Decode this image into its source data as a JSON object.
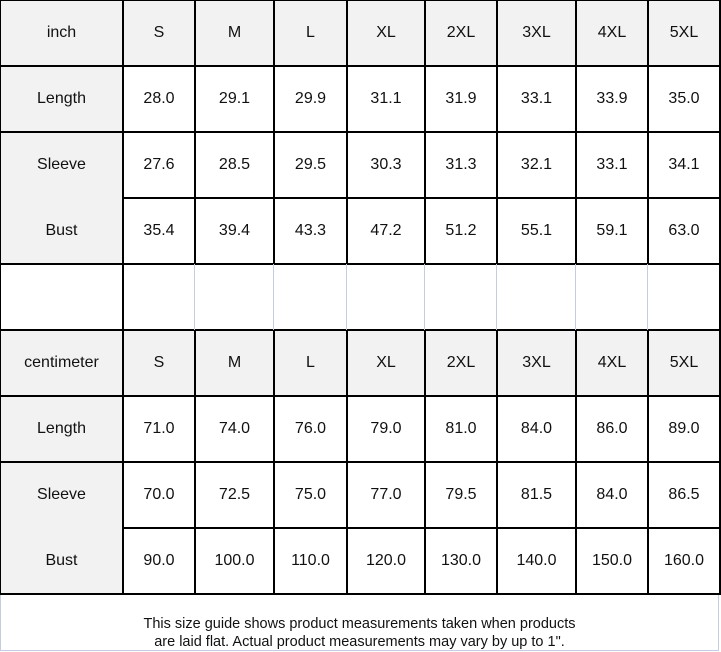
{
  "tables": [
    {
      "unit": "inch",
      "sizes": [
        "S",
        "M",
        "L",
        "XL",
        "2XL",
        "3XL",
        "4XL",
        "5XL"
      ],
      "rows": [
        {
          "label": "Length",
          "values": [
            "28.0",
            "29.1",
            "29.9",
            "31.1",
            "31.9",
            "33.1",
            "33.9",
            "35.0"
          ]
        },
        {
          "label": "Sleeve",
          "values": [
            "27.6",
            "28.5",
            "29.5",
            "30.3",
            "31.3",
            "32.1",
            "33.1",
            "34.1"
          ]
        },
        {
          "label": "Bust",
          "values": [
            "35.4",
            "39.4",
            "43.3",
            "47.2",
            "51.2",
            "55.1",
            "59.1",
            "63.0"
          ]
        }
      ]
    },
    {
      "unit": "centimeter",
      "sizes": [
        "S",
        "M",
        "L",
        "XL",
        "2XL",
        "3XL",
        "4XL",
        "5XL"
      ],
      "rows": [
        {
          "label": "Length",
          "values": [
            "71.0",
            "74.0",
            "76.0",
            "79.0",
            "81.0",
            "84.0",
            "86.0",
            "89.0"
          ]
        },
        {
          "label": "Sleeve",
          "values": [
            "70.0",
            "72.5",
            "75.0",
            "77.0",
            "79.5",
            "81.5",
            "84.0",
            "86.5"
          ]
        },
        {
          "label": "Bust",
          "values": [
            "90.0",
            "100.0",
            "110.0",
            "120.0",
            "130.0",
            "140.0",
            "150.0",
            "160.0"
          ]
        }
      ]
    }
  ],
  "footer": {
    "line1": "This size guide shows product measurements taken when products",
    "line2": "are laid flat. Actual product measurements may vary by up to 1\"."
  }
}
